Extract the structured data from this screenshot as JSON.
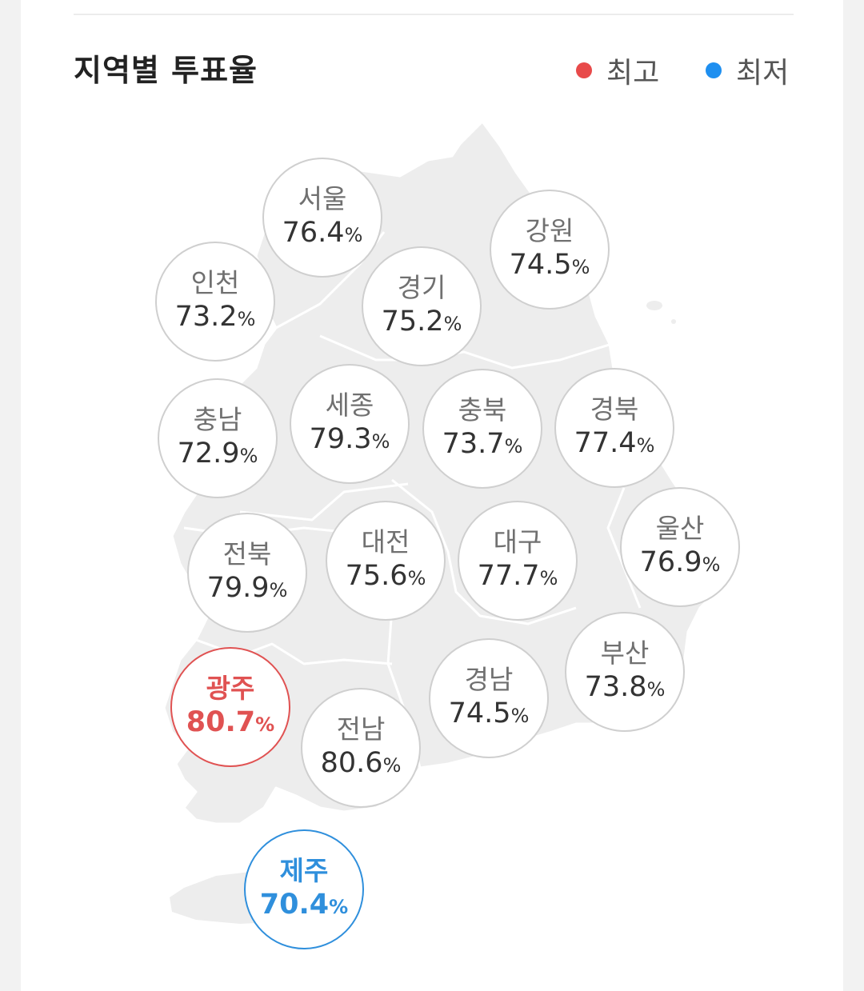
{
  "title": "지역별 투표율",
  "legend": {
    "high": {
      "label": "최고",
      "color": "#e84a4a"
    },
    "low": {
      "label": "최저",
      "color": "#1e8ff0"
    }
  },
  "unit": "%",
  "regions": [
    {
      "id": "seoul",
      "name": "서울",
      "value": 76.4
    },
    {
      "id": "gangwon",
      "name": "강원",
      "value": 74.5
    },
    {
      "id": "incheon",
      "name": "인천",
      "value": 73.2
    },
    {
      "id": "gyeonggi",
      "name": "경기",
      "value": 75.2
    },
    {
      "id": "chungnam",
      "name": "충남",
      "value": 72.9
    },
    {
      "id": "sejong",
      "name": "세종",
      "value": 79.3
    },
    {
      "id": "chungbuk",
      "name": "충북",
      "value": 73.7
    },
    {
      "id": "gyeongbuk",
      "name": "경북",
      "value": 77.4
    },
    {
      "id": "jeonbuk",
      "name": "전북",
      "value": 79.9
    },
    {
      "id": "daejeon",
      "name": "대전",
      "value": 75.6
    },
    {
      "id": "daegu",
      "name": "대구",
      "value": 77.7
    },
    {
      "id": "ulsan",
      "name": "울산",
      "value": 76.9
    },
    {
      "id": "gwangju",
      "name": "광주",
      "value": 80.7,
      "status": "high"
    },
    {
      "id": "jeonnam",
      "name": "전남",
      "value": 80.6
    },
    {
      "id": "gyeongnam",
      "name": "경남",
      "value": 74.5
    },
    {
      "id": "busan",
      "name": "부산",
      "value": 73.8
    },
    {
      "id": "jeju",
      "name": "제주",
      "value": 70.4,
      "status": "low"
    }
  ]
}
